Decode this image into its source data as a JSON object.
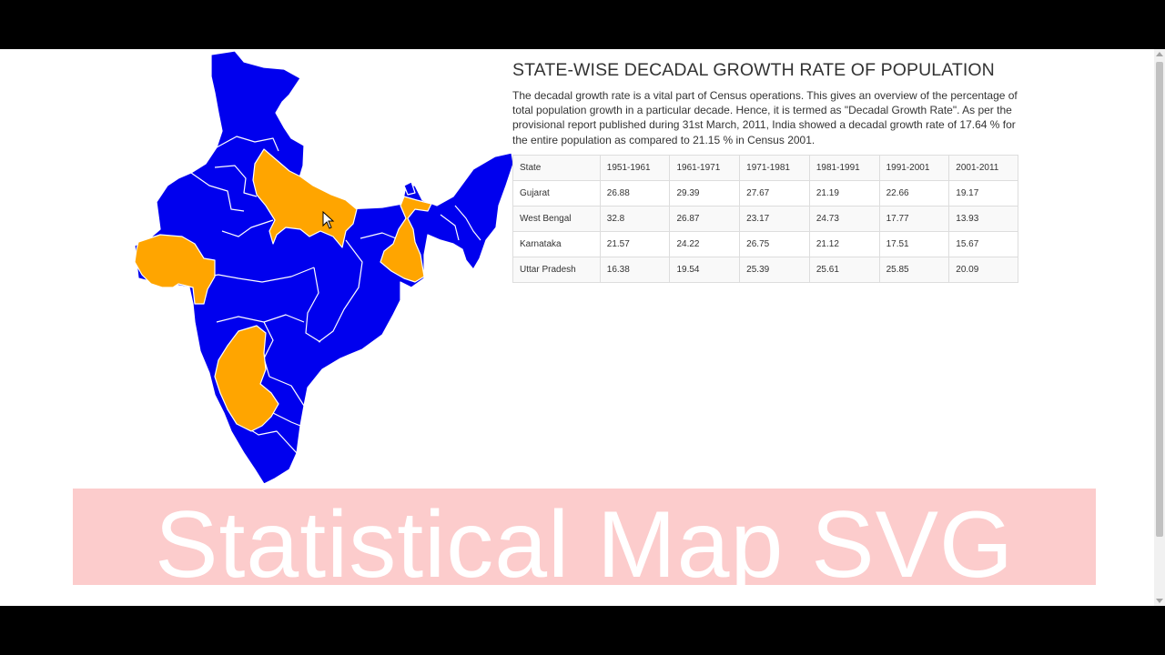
{
  "page": {
    "title": "STATE-WISE DECADAL GROWTH RATE OF POPULATION",
    "intro": "The decadal growth rate is a vital part of Census operations. This gives an overview of the percentage of total population growth in a particular decade. Hence, it is termed as \"Decadal Growth Rate\". As per the provisional report published during 31st March, 2011, India showed a decadal growth rate of 17.64 % for the entire population as compared to 21.15 % in Census 2001."
  },
  "table": {
    "headers": [
      "State",
      "1951-1961",
      "1961-1971",
      "1971-1981",
      "1981-1991",
      "1991-2001",
      "2001-2011"
    ],
    "rows": [
      [
        "Gujarat",
        "26.88",
        "29.39",
        "27.67",
        "21.19",
        "22.66",
        "19.17"
      ],
      [
        "West Bengal",
        "32.8",
        "26.87",
        "23.17",
        "24.73",
        "17.77",
        "13.93"
      ],
      [
        "Karnataka",
        "21.57",
        "24.22",
        "26.75",
        "21.12",
        "17.51",
        "15.67"
      ],
      [
        "Uttar Pradesh",
        "16.38",
        "19.54",
        "25.39",
        "25.61",
        "25.85",
        "20.09"
      ]
    ]
  },
  "map": {
    "base_color": "#0000ee",
    "highlight_color": "#ffa500",
    "highlighted_states": [
      "Gujarat",
      "West Bengal",
      "Karnataka",
      "Uttar Pradesh"
    ]
  },
  "banner": {
    "text": "Statistical Map SVG",
    "background": "#fccccc"
  },
  "icons": {
    "cursor": "mouse-pointer-icon"
  }
}
